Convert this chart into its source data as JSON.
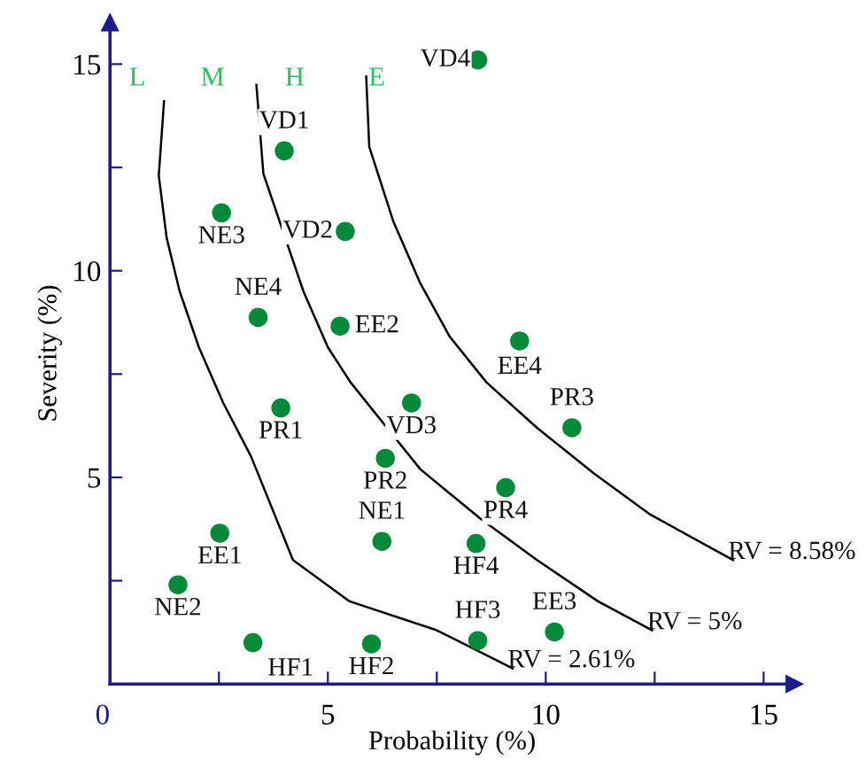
{
  "chart_data": {
    "type": "scatter",
    "xlabel": "Probability (%)",
    "ylabel": "Severity (%)",
    "xlim": [
      0,
      15.7
    ],
    "ylim": [
      0,
      16
    ],
    "xticks": [
      0,
      {
        "value": 2.5,
        "label": null
      },
      5,
      {
        "value": 7.5,
        "label": null
      },
      10,
      {
        "value": 12.5,
        "label": null
      },
      15
    ],
    "yticks": [
      {
        "value": 2.5,
        "label": null
      },
      5,
      {
        "value": 7.5,
        "label": null
      },
      10,
      {
        "value": 12.5,
        "label": null
      },
      15
    ],
    "grid": false,
    "legend": false,
    "marker": "circle",
    "annotations": [
      "L",
      "M",
      "H",
      "E"
    ],
    "series": [
      {
        "name": "VD4",
        "color": "#008a3a",
        "x": [
          8.44
        ],
        "values": [
          15.1
        ]
      },
      {
        "name": "VD1",
        "color": "#008a3a",
        "x": [
          4.0
        ],
        "values": [
          12.9
        ]
      },
      {
        "name": "NE3",
        "color": "#008a3a",
        "x": [
          2.56
        ],
        "values": [
          11.4
        ]
      },
      {
        "name": "VD2",
        "color": "#008a3a",
        "x": [
          5.4
        ],
        "values": [
          10.95
        ]
      },
      {
        "name": "NE4",
        "color": "#008a3a",
        "x": [
          3.4
        ],
        "values": [
          8.87
        ]
      },
      {
        "name": "EE2",
        "color": "#008a3a",
        "x": [
          5.28
        ],
        "values": [
          8.66
        ]
      },
      {
        "name": "EE4",
        "color": "#008a3a",
        "x": [
          9.4
        ],
        "values": [
          8.3
        ]
      },
      {
        "name": "PR3",
        "color": "#008a3a",
        "x": [
          10.6
        ],
        "values": [
          6.2
        ]
      },
      {
        "name": "VD3",
        "color": "#008a3a",
        "x": [
          6.92
        ],
        "values": [
          6.8
        ]
      },
      {
        "name": "PR1",
        "color": "#008a3a",
        "x": [
          3.92
        ],
        "values": [
          6.68
        ]
      },
      {
        "name": "PR2",
        "color": "#008a3a",
        "x": [
          6.32
        ],
        "values": [
          5.46
        ]
      },
      {
        "name": "PR4",
        "color": "#008a3a",
        "x": [
          9.08
        ],
        "values": [
          4.75
        ]
      },
      {
        "name": "HF4",
        "color": "#008a3a",
        "x": [
          8.4
        ],
        "values": [
          3.4
        ]
      },
      {
        "name": "NE1",
        "color": "#008a3a",
        "x": [
          6.24
        ],
        "values": [
          3.45
        ]
      },
      {
        "name": "EE1",
        "color": "#008a3a",
        "x": [
          2.52
        ],
        "values": [
          3.65
        ]
      },
      {
        "name": "NE2",
        "color": "#008a3a",
        "x": [
          1.56
        ],
        "values": [
          2.4
        ]
      },
      {
        "name": "HF1",
        "color": "#008a3a",
        "x": [
          3.28
        ],
        "values": [
          1.0
        ]
      },
      {
        "name": "HF2",
        "color": "#008a3a",
        "x": [
          6.0
        ],
        "values": [
          0.97
        ]
      },
      {
        "name": "HF3",
        "color": "#008a3a",
        "x": [
          8.44
        ],
        "values": [
          1.05
        ]
      },
      {
        "name": "EE3",
        "color": "#008a3a",
        "x": [
          10.2
        ],
        "values": [
          1.26
        ]
      },
      {
        "name": "RV = 2.61%",
        "type": "line",
        "marker": "none",
        "color": "#000000",
        "x": [
          1.24,
          1.12,
          1.3,
          1.6,
          2.04,
          2.6,
          3.24,
          4.2,
          5.5,
          7.5,
          9.24
        ],
        "values": [
          14.1,
          12.3,
          10.8,
          9.5,
          8.15,
          6.8,
          5.5,
          3.0,
          2.0,
          1.3,
          0.38
        ]
      },
      {
        "name": "RV = 5%",
        "type": "line",
        "marker": "none",
        "color": "#000000",
        "x": [
          3.36,
          3.52,
          4.44,
          5.0,
          5.52,
          7.12,
          8.5,
          9.8,
          11.2,
          12.44
        ],
        "values": [
          14.5,
          12.35,
          9.5,
          8.15,
          7.3,
          5.2,
          4.0,
          3.0,
          2.0,
          1.3
        ]
      },
      {
        "name": "RV = 8.58%",
        "type": "line",
        "marker": "none",
        "color": "#000000",
        "x": [
          5.88,
          5.95,
          6.5,
          7.12,
          7.8,
          8.64,
          9.8,
          11.1,
          12.4,
          14.3
        ],
        "values": [
          14.7,
          13.0,
          11.2,
          9.7,
          8.4,
          7.3,
          6.2,
          5.1,
          4.1,
          3.0
        ]
      }
    ]
  }
}
